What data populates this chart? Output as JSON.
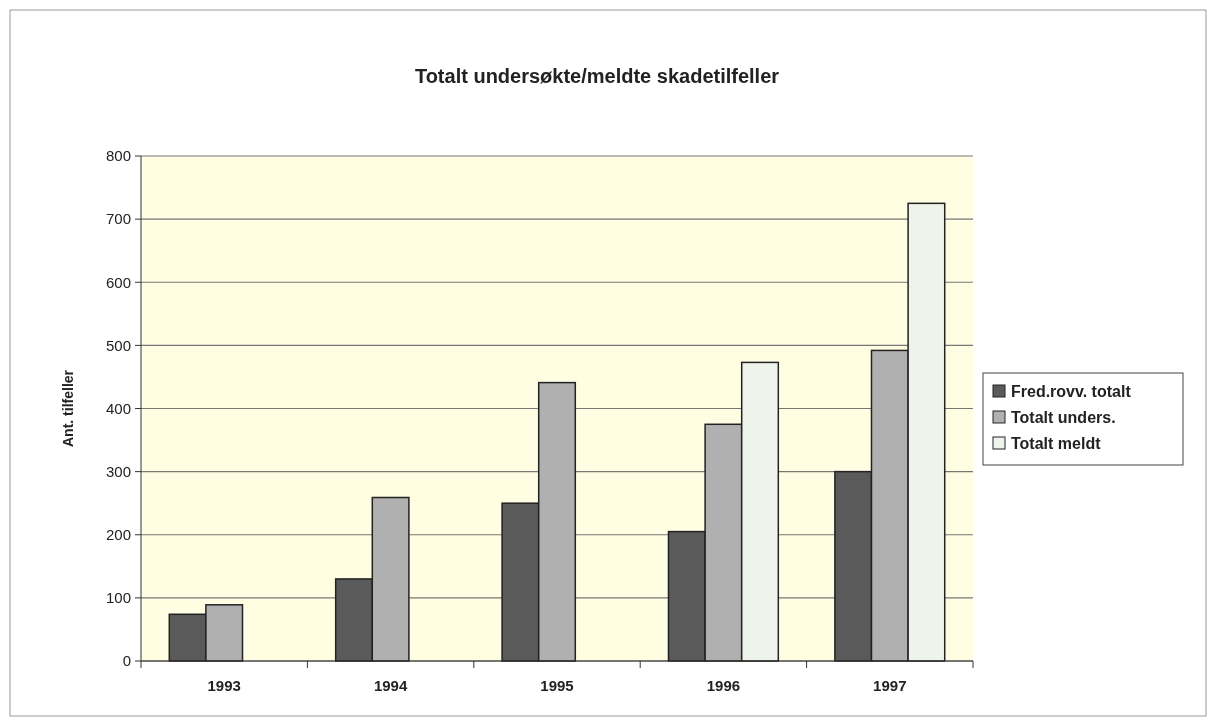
{
  "chart_data": {
    "type": "bar",
    "title": "Totalt undersøkte/meldte skadetilfeller",
    "ylabel": "Ant. tilfeller",
    "categories": [
      "1993",
      "1994",
      "1995",
      "1996",
      "1997"
    ],
    "series": [
      {
        "name": "Fred.rovv. totalt",
        "color": "#5a5a5a",
        "values": [
          74,
          130,
          250,
          205,
          300
        ]
      },
      {
        "name": "Totalt unders.",
        "color": "#b0b0b0",
        "values": [
          89,
          259,
          441,
          375,
          492
        ]
      },
      {
        "name": "Totalt meldt",
        "color": "#eef4ec",
        "values": [
          null,
          null,
          null,
          473,
          725
        ]
      }
    ],
    "ylim": [
      0,
      800
    ],
    "yticks": [
      0,
      100,
      200,
      300,
      400,
      500,
      600,
      700,
      800
    ],
    "grid": "y",
    "legend": "right"
  }
}
